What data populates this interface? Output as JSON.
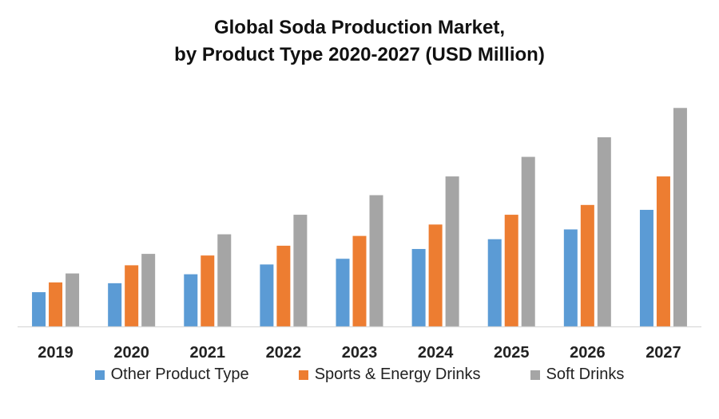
{
  "title_lines": [
    "Global Soda Production Market,",
    "by Product Type 2020-2027 (USD Million)"
  ],
  "chart_data": {
    "type": "bar",
    "title": "Global Soda Production Market, by Product Type 2020-2027 (USD Million)",
    "categories": [
      "2019",
      "2020",
      "2021",
      "2022",
      "2023",
      "2024",
      "2025",
      "2026",
      "2027"
    ],
    "ylim": [
      0,
      280
    ],
    "grid": false,
    "legend_position": "bottom",
    "series": [
      {
        "name": "Other Product Type",
        "color": "#5B9BD5",
        "values": [
          42,
          53,
          64,
          76,
          83,
          95,
          107,
          119,
          143
        ]
      },
      {
        "name": "Sports & Energy Drinks",
        "color": "#ED7D31",
        "values": [
          54,
          75,
          87,
          99,
          111,
          125,
          137,
          149,
          184
        ]
      },
      {
        "name": "Soft Drinks",
        "color": "#A5A5A5",
        "values": [
          65,
          89,
          113,
          137,
          161,
          184,
          208,
          232,
          268
        ]
      }
    ]
  }
}
